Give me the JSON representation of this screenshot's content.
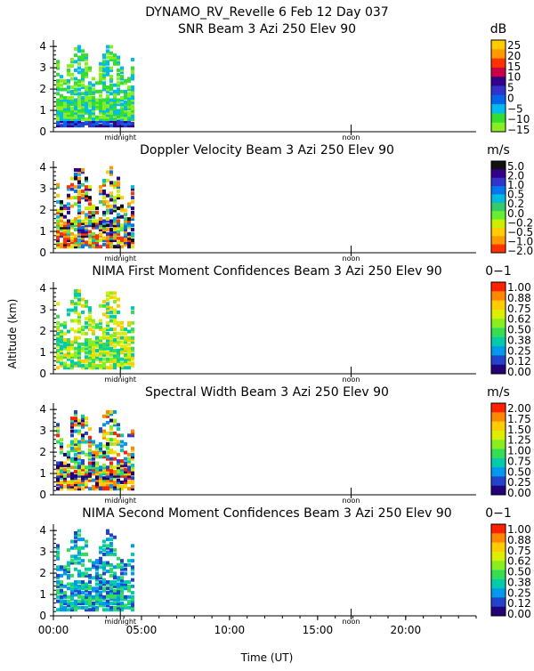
{
  "header": {
    "line1": "DYNAMO_RV_Revelle    6 Feb 12 Day 037"
  },
  "axes": {
    "ylabel": "Altitude (km)",
    "xlabel": "Time (UT)",
    "x_ticks": [
      "00:00",
      "05:00",
      "10:00",
      "15:00",
      "20:00"
    ],
    "x_tick_hours": [
      0,
      5,
      10,
      15,
      20
    ],
    "xlim_hours": [
      0,
      24
    ],
    "y_ticks": [
      "0",
      "1",
      "2",
      "3",
      "4"
    ],
    "ylim_km": [
      0,
      4.3
    ],
    "markers": {
      "midnight": "midnight",
      "noon": "noon"
    },
    "midnight_hour": 3.8,
    "noon_hour": 16.9
  },
  "chart_data": [
    {
      "type": "heatmap",
      "title": "SNR Beam 3 Azi 250 Elev 90",
      "units": "dB",
      "colorbar_labels": [
        "25",
        "20",
        "15",
        "10",
        "5",
        "0",
        "−5",
        "−10",
        "−15"
      ],
      "colorbar_colors": [
        "#ffcc00",
        "#ff9900",
        "#ff3300",
        "#cc0044",
        "#330088",
        "#3333cc",
        "#0066ee",
        "#00bbee",
        "#33dd33",
        "#88ee22"
      ],
      "data_extent_hours": [
        0,
        4.4
      ],
      "data_extent_km": [
        0,
        4.0
      ]
    },
    {
      "type": "heatmap",
      "title": "Doppler Velocity Beam 3 Azi 250 Elev 90",
      "units": "m/s",
      "colorbar_labels": [
        "5.0",
        "2.0",
        "1.0",
        "0.5",
        "0.2",
        "0.0",
        "−0.2",
        "−0.5",
        "−1.0",
        "−2.0"
      ],
      "colorbar_colors": [
        "#111111",
        "#330088",
        "#3333cc",
        "#0077ee",
        "#00bbdd",
        "#33cc66",
        "#66ee33",
        "#ccee00",
        "#ffcc00",
        "#ff9900",
        "#ff3300"
      ],
      "data_extent_hours": [
        0,
        4.4
      ],
      "data_extent_km": [
        0,
        4.0
      ]
    },
    {
      "type": "heatmap",
      "title": "NIMA First Moment Confidences Beam 3 Azi 250 Elev 90",
      "units": "0−1",
      "colorbar_labels": [
        "1.00",
        "0.88",
        "0.75",
        "0.62",
        "0.50",
        "0.38",
        "0.25",
        "0.12",
        "0.00"
      ],
      "colorbar_colors": [
        "#ff2200",
        "#ff8800",
        "#ffcc00",
        "#ddee00",
        "#88ee22",
        "#33dd55",
        "#00ccaa",
        "#0099ee",
        "#2244cc",
        "#220077"
      ],
      "data_extent_hours": [
        0,
        4.4
      ],
      "data_extent_km": [
        0,
        4.0
      ]
    },
    {
      "type": "heatmap",
      "title": "Spectral Width Beam 3 Azi 250 Elev 90",
      "units": "m/s",
      "colorbar_labels": [
        "2.00",
        "1.75",
        "1.50",
        "1.25",
        "1.00",
        "0.75",
        "0.50",
        "0.25",
        "0.00"
      ],
      "colorbar_colors": [
        "#ff2200",
        "#ff8800",
        "#ffcc00",
        "#ddee00",
        "#88ee22",
        "#33dd55",
        "#00ccaa",
        "#0099ee",
        "#2244cc",
        "#220077"
      ],
      "data_extent_hours": [
        0,
        4.4
      ],
      "data_extent_km": [
        0,
        4.0
      ]
    },
    {
      "type": "heatmap",
      "title": "NIMA Second Moment Confidences Beam 3 Azi 250 Elev 90",
      "units": "0−1",
      "colorbar_labels": [
        "1.00",
        "0.88",
        "0.75",
        "0.62",
        "0.50",
        "0.38",
        "0.25",
        "0.12",
        "0.00"
      ],
      "colorbar_colors": [
        "#ff2200",
        "#ff8800",
        "#ffcc00",
        "#ddee00",
        "#88ee22",
        "#33dd55",
        "#00ccaa",
        "#0099ee",
        "#2244cc",
        "#220077"
      ],
      "data_extent_hours": [
        0,
        4.4
      ],
      "data_extent_km": [
        0,
        4.0
      ]
    }
  ]
}
